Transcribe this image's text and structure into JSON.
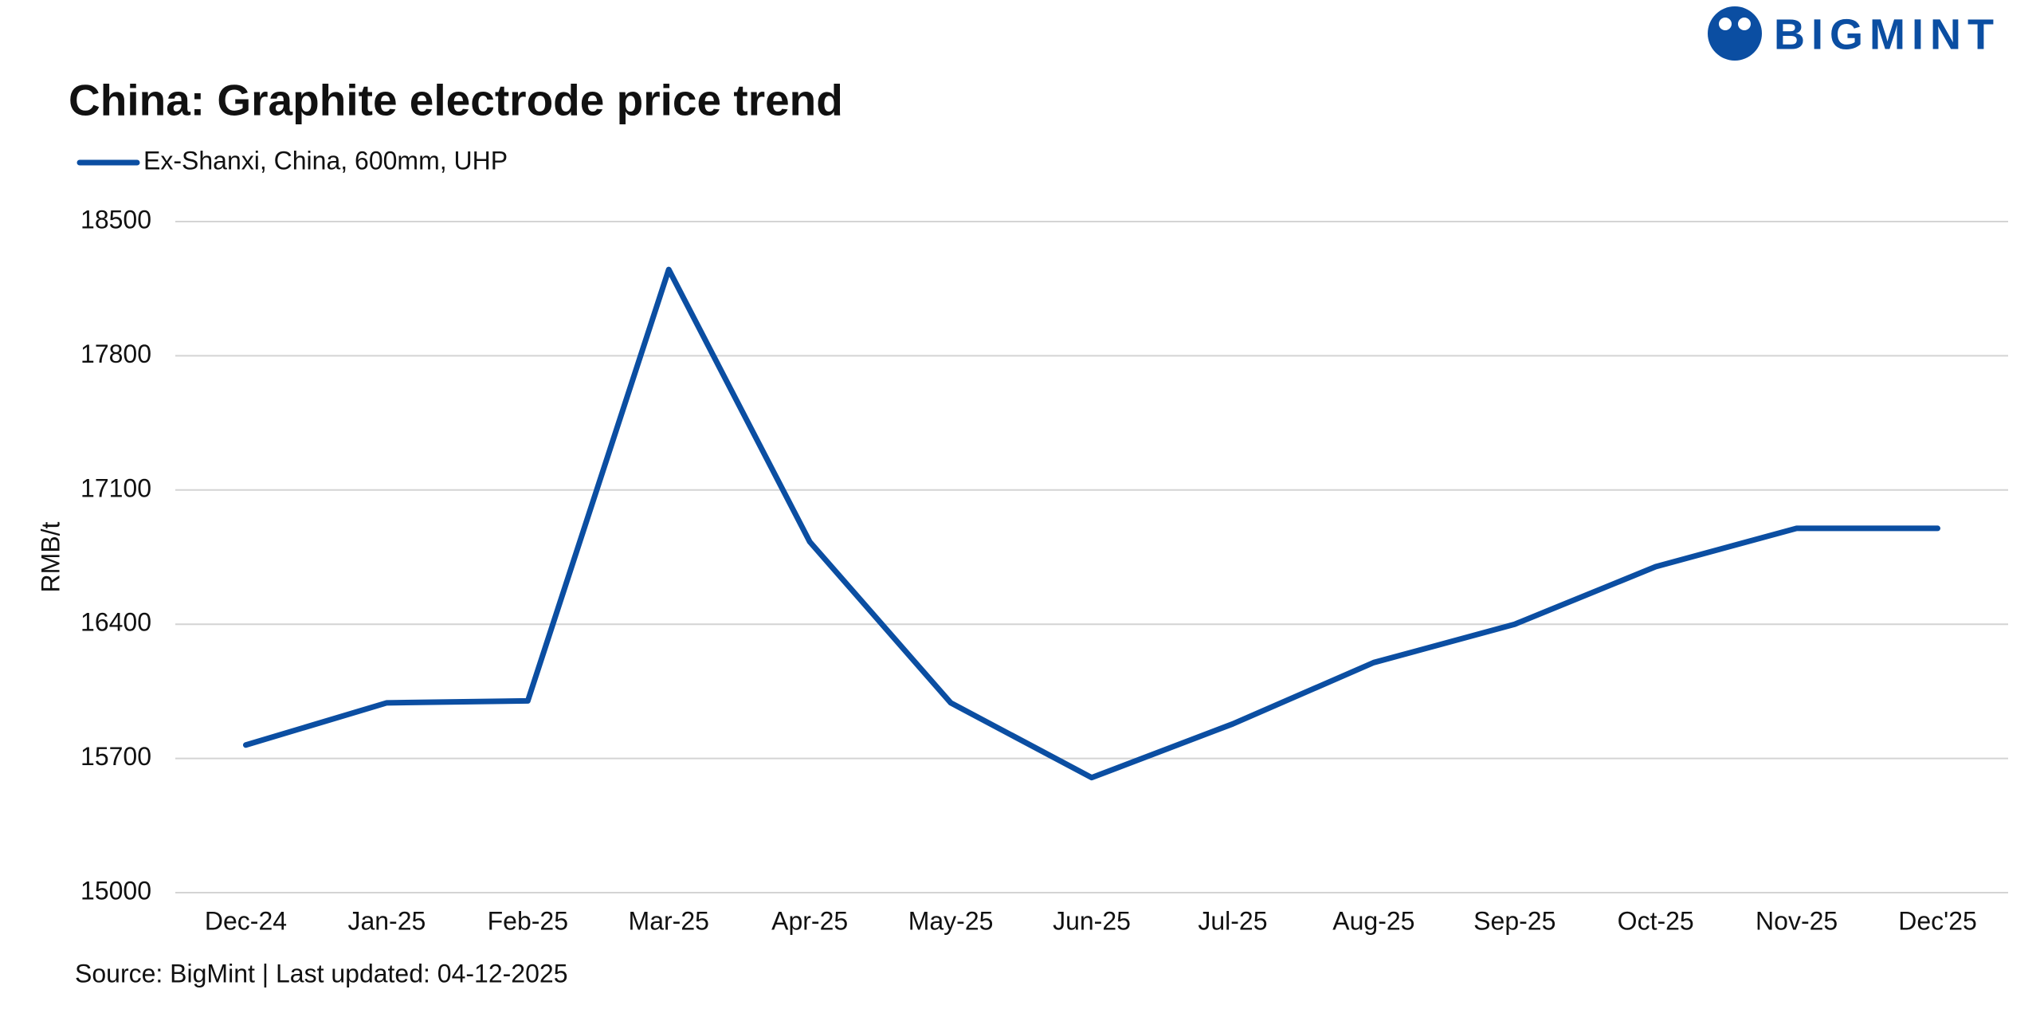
{
  "brand": "BIGMINT",
  "chart_data": {
    "type": "line",
    "title": "China: Graphite electrode price trend",
    "y_label": "RMB/t",
    "source": "Source: BigMint | Last updated: 04-12-2025",
    "categories": [
      "Dec-24",
      "Jan-25",
      "Feb-25",
      "Mar-25",
      "Apr-25",
      "May-25",
      "Jun-25",
      "Jul-25",
      "Aug-25",
      "Sep-25",
      "Oct-25",
      "Nov-25",
      "Dec'25"
    ],
    "series": [
      {
        "name": "Ex-Shanxi, China, 600mm, UHP",
        "color": "#0b4ea2",
        "values": [
          15770,
          15990,
          16000,
          18250,
          16830,
          15990,
          15600,
          15880,
          16200,
          16400,
          16700,
          16900,
          16900
        ]
      }
    ],
    "ylim": [
      15000,
      18500
    ],
    "yticks": [
      15000,
      15700,
      16400,
      17100,
      17800,
      18500
    ],
    "grid": true
  }
}
